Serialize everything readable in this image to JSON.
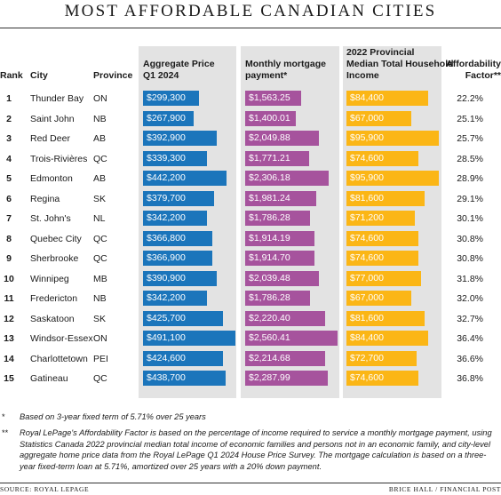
{
  "title": "MOST AFFORDABLE CANADIAN CITIES",
  "colors": {
    "price": "#1b75bb",
    "mortgage": "#a6539d",
    "income": "#fbb616",
    "column_bg": "#e3e3e3"
  },
  "headers": {
    "rank": "Rank",
    "city": "City",
    "province": "Province",
    "price": [
      "Aggregate Price",
      "Q1 2024"
    ],
    "mortgage": [
      "Monthly mortgage",
      "payment*"
    ],
    "income": [
      "2022 Provincial",
      "Median Total Household",
      "Income"
    ],
    "affordability": [
      "Affordability",
      "Factor**"
    ]
  },
  "chart_data": {
    "type": "bar",
    "title": "MOST AFFORDABLE CANADIAN CITIES",
    "categories": [
      "Thunder Bay",
      "Saint John",
      "Red Deer",
      "Trois-Rivières",
      "Edmonton",
      "Regina",
      "St. John's",
      "Quebec City",
      "Sherbrooke",
      "Winnipeg",
      "Fredericton",
      "Saskatoon",
      "Windsor-Essex",
      "Charlottetown",
      "Gatineau"
    ],
    "series": [
      {
        "name": "Aggregate Price Q1 2024",
        "values": [
          299300,
          267900,
          392900,
          339300,
          442200,
          379700,
          342200,
          366800,
          366900,
          390900,
          342200,
          425700,
          491100,
          424600,
          438700
        ]
      },
      {
        "name": "Monthly mortgage payment*",
        "values": [
          1563.25,
          1400.01,
          2049.88,
          1771.21,
          2306.18,
          1981.24,
          1786.28,
          1914.19,
          1914.7,
          2039.48,
          1786.28,
          2220.4,
          2560.41,
          2214.68,
          2287.99
        ]
      },
      {
        "name": "2022 Provincial Median Total Household Income",
        "values": [
          84400,
          67000,
          95900,
          74600,
          95900,
          81600,
          71200,
          74600,
          74600,
          77000,
          67000,
          81600,
          84400,
          72700,
          74600
        ]
      }
    ]
  },
  "rows": [
    {
      "rank": "1",
      "city": "Thunder Bay",
      "province": "ON",
      "price": "$299,300",
      "mortgage": "$1,563.25",
      "income": "$84,400",
      "aff": "22.2%"
    },
    {
      "rank": "2",
      "city": "Saint John",
      "province": "NB",
      "price": "$267,900",
      "mortgage": "$1,400.01",
      "income": "$67,000",
      "aff": "25.1%"
    },
    {
      "rank": "3",
      "city": "Red Deer",
      "province": "AB",
      "price": "$392,900",
      "mortgage": "$2,049.88",
      "income": "$95,900",
      "aff": "25.7%"
    },
    {
      "rank": "4",
      "city": "Trois-Rivières",
      "province": "QC",
      "price": "$339,300",
      "mortgage": "$1,771.21",
      "income": "$74,600",
      "aff": "28.5%"
    },
    {
      "rank": "5",
      "city": "Edmonton",
      "province": "AB",
      "price": "$442,200",
      "mortgage": "$2,306.18",
      "income": "$95,900",
      "aff": "28.9%"
    },
    {
      "rank": "6",
      "city": "Regina",
      "province": "SK",
      "price": "$379,700",
      "mortgage": "$1,981.24",
      "income": "$81,600",
      "aff": "29.1%"
    },
    {
      "rank": "7",
      "city": "St. John's",
      "province": "NL",
      "price": "$342,200",
      "mortgage": "$1,786.28",
      "income": "$71,200",
      "aff": "30.1%"
    },
    {
      "rank": "8",
      "city": "Quebec City",
      "province": "QC",
      "price": "$366,800",
      "mortgage": "$1,914.19",
      "income": "$74,600",
      "aff": "30.8%"
    },
    {
      "rank": "9",
      "city": "Sherbrooke",
      "province": "QC",
      "price": "$366,900",
      "mortgage": "$1,914.70",
      "income": "$74,600",
      "aff": "30.8%"
    },
    {
      "rank": "10",
      "city": "Winnipeg",
      "province": "MB",
      "price": "$390,900",
      "mortgage": "$2,039.48",
      "income": "$77,000",
      "aff": "31.8%"
    },
    {
      "rank": "11",
      "city": "Fredericton",
      "province": "NB",
      "price": "$342,200",
      "mortgage": "$1,786.28",
      "income": "$67,000",
      "aff": "32.0%"
    },
    {
      "rank": "12",
      "city": "Saskatoon",
      "province": "SK",
      "price": "$425,700",
      "mortgage": "$2,220.40",
      "income": "$81,600",
      "aff": "32.7%"
    },
    {
      "rank": "13",
      "city": "Windsor-Essex",
      "province": "ON",
      "price": "$491,100",
      "mortgage": "$2,560.41",
      "income": "$84,400",
      "aff": "36.4%"
    },
    {
      "rank": "14",
      "city": "Charlottetown",
      "province": "PEI",
      "price": "$424,600",
      "mortgage": "$2,214.68",
      "income": "$72,700",
      "aff": "36.6%"
    },
    {
      "rank": "15",
      "city": "Gatineau",
      "province": "QC",
      "price": "$438,700",
      "mortgage": "$2,287.99",
      "income": "$74,600",
      "aff": "36.8%"
    }
  ],
  "footnotes": [
    {
      "mark": "*",
      "text": "Based on 3-year fixed term of 5.71% over 25 years"
    },
    {
      "mark": "**",
      "text": "Royal LePage's Affordability Factor is based on the percentage of income required to service a monthly mortgage payment, using Statistics Canada 2022 provincial median total income of economic families and persons not in an economic family, and city-level aggregate home price data from the Royal LePage Q1 2024 House Price Survey. The mortgage calculation is based on a three-year fixed-term loan at 5.71%, amortized over 25 years with a 20% down payment."
    }
  ],
  "source": "SOURCE: ROYAL LEPAGE",
  "credit": "BRICE HALL / FINANCIAL POST"
}
